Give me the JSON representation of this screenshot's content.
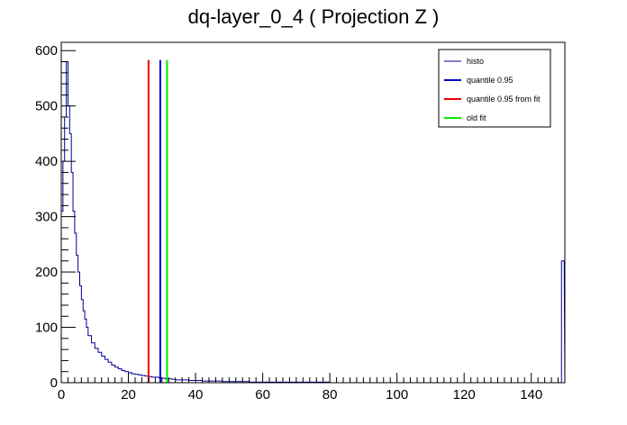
{
  "chart_data": {
    "type": "histogram",
    "title": "dq-layer_0_4 ( Projection Z )",
    "xlabel": "",
    "ylabel": "",
    "xlim": [
      0,
      150
    ],
    "ylim": [
      0,
      615
    ],
    "x_ticks": [
      0,
      20,
      40,
      60,
      80,
      100,
      120,
      140
    ],
    "y_ticks": [
      0,
      100,
      200,
      300,
      400,
      500,
      600
    ],
    "grid": false,
    "legend_position": "top-right",
    "series": [
      {
        "name": "histo",
        "kind": "step",
        "color": "#000099",
        "x": [
          0.5,
          1.0,
          1.5,
          2.0,
          2.5,
          3.0,
          3.5,
          4.0,
          4.5,
          5.0,
          5.5,
          6.0,
          6.5,
          7.0,
          7.5,
          8.0,
          9.0,
          10.0,
          11.0,
          12.0,
          13.0,
          14.0,
          15.0,
          16.0,
          17.0,
          18.0,
          19.0,
          20.0,
          21.0,
          22.0,
          23.0,
          24.0,
          25.0,
          26.0,
          27.0,
          28.0,
          29.0,
          30.0,
          31.0,
          32.0,
          33.0,
          34.0,
          36.0,
          38.0,
          40.0,
          42.0,
          44.0,
          46.0,
          48.0,
          50.0,
          52.0,
          54.0,
          56.0,
          58.0,
          60.0,
          65.0,
          70.0,
          80.0,
          90.0,
          100.0,
          110.0,
          120.0,
          130.0,
          140.0,
          149.0,
          149.8
        ],
        "values": [
          310,
          400,
          480,
          580,
          500,
          450,
          380,
          310,
          270,
          230,
          200,
          175,
          150,
          130,
          115,
          100,
          85,
          72,
          62,
          55,
          48,
          42,
          37,
          32,
          28,
          25,
          22,
          20,
          18,
          16,
          15,
          14,
          13,
          12,
          11,
          10,
          10,
          9,
          8,
          7,
          7,
          6,
          5,
          5,
          4,
          4,
          3,
          3,
          3,
          2,
          2,
          2,
          2,
          1,
          1,
          1,
          1,
          1,
          0,
          0,
          0,
          0,
          0,
          0,
          0,
          220
        ]
      },
      {
        "name": "quantile 0.95",
        "kind": "vline",
        "color": "#0000cc",
        "x": 29.5,
        "y_top": 583
      },
      {
        "name": "quantile 0.95 from fit",
        "kind": "vline",
        "color": "#ee0000",
        "x": 26.0,
        "y_top": 583
      },
      {
        "name": "old fit",
        "kind": "vline",
        "color": "#00ee00",
        "x": 31.5,
        "y_top": 583
      }
    ]
  }
}
